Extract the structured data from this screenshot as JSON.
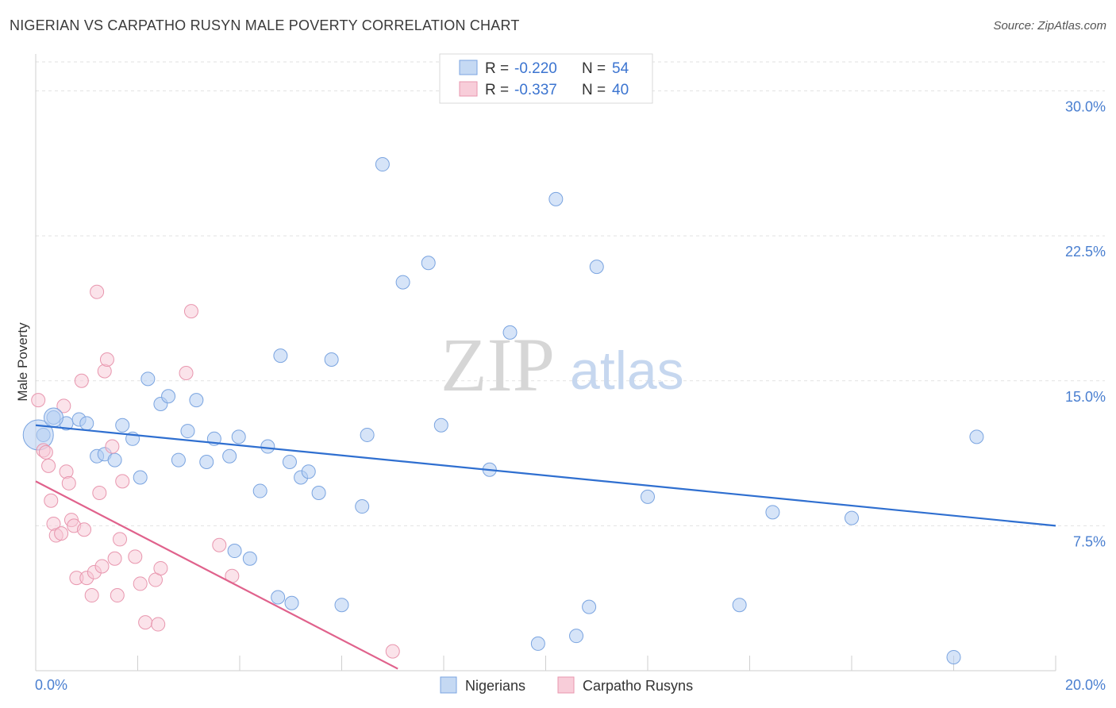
{
  "header": {
    "title": "NIGERIAN VS CARPATHO RUSYN MALE POVERTY CORRELATION CHART",
    "source": "Source: ZipAtlas.com"
  },
  "watermark": {
    "zip": "ZIP",
    "atlas": "atlas"
  },
  "legend": {
    "rows": [
      {
        "r_label": "R = ",
        "r_value": "-0.220",
        "n_label": "N = ",
        "n_value": "54",
        "color": "#5b8fd8"
      },
      {
        "r_label": "R = ",
        "r_value": "-0.337",
        "n_label": "N = ",
        "n_value": "40",
        "color": "#e07a9a"
      }
    ]
  },
  "bottom_legend": {
    "items": [
      {
        "label": "Nigerians",
        "color": "#5b8fd8"
      },
      {
        "label": "Carpatho Rusyns",
        "color": "#e07a9a"
      }
    ]
  },
  "chart_data": {
    "type": "scatter",
    "title": "NIGERIAN VS CARPATHO RUSYN MALE POVERTY CORRELATION CHART",
    "xlabel": "",
    "ylabel": "Male Poverty",
    "xlim": [
      0,
      20
    ],
    "ylim": [
      0,
      31.5
    ],
    "x_tick_labels": [
      "0.0%",
      "20.0%"
    ],
    "y_ticks": [
      7.5,
      15.0,
      22.5,
      30.0
    ],
    "y_tick_labels": [
      "7.5%",
      "15.0%",
      "22.5%",
      "30.0%"
    ],
    "grid": "horizontal dashed",
    "legend_position": "top-center",
    "series": [
      {
        "name": "Nigerians",
        "color": "#5b8fd8",
        "trend": {
          "x": [
            0,
            20
          ],
          "y": [
            12.7,
            7.5
          ]
        },
        "points": [
          [
            0.15,
            12.2
          ],
          [
            0.35,
            13.1
          ],
          [
            0.6,
            12.8
          ],
          [
            0.85,
            13.0
          ],
          [
            1.0,
            12.8
          ],
          [
            1.2,
            11.1
          ],
          [
            1.35,
            11.2
          ],
          [
            1.55,
            10.9
          ],
          [
            1.7,
            12.7
          ],
          [
            1.9,
            12.0
          ],
          [
            2.05,
            10.0
          ],
          [
            2.2,
            15.1
          ],
          [
            2.45,
            13.8
          ],
          [
            2.6,
            14.2
          ],
          [
            2.8,
            10.9
          ],
          [
            2.98,
            12.4
          ],
          [
            3.15,
            14.0
          ],
          [
            3.35,
            10.8
          ],
          [
            3.5,
            12.0
          ],
          [
            3.8,
            11.1
          ],
          [
            3.9,
            6.2
          ],
          [
            3.98,
            12.1
          ],
          [
            4.2,
            5.8
          ],
          [
            4.4,
            9.3
          ],
          [
            4.55,
            11.6
          ],
          [
            4.75,
            3.8
          ],
          [
            4.8,
            16.3
          ],
          [
            4.98,
            10.8
          ],
          [
            5.02,
            3.5
          ],
          [
            5.2,
            10.0
          ],
          [
            5.35,
            10.3
          ],
          [
            5.55,
            9.2
          ],
          [
            5.8,
            16.1
          ],
          [
            6.0,
            3.4
          ],
          [
            6.4,
            8.5
          ],
          [
            6.5,
            12.2
          ],
          [
            6.8,
            26.2
          ],
          [
            7.2,
            20.1
          ],
          [
            7.7,
            21.1
          ],
          [
            7.95,
            12.7
          ],
          [
            8.9,
            10.4
          ],
          [
            9.3,
            17.5
          ],
          [
            9.85,
            1.4
          ],
          [
            10.2,
            24.4
          ],
          [
            10.6,
            1.8
          ],
          [
            10.85,
            3.3
          ],
          [
            11.0,
            20.9
          ],
          [
            12.0,
            9.0
          ],
          [
            13.8,
            3.4
          ],
          [
            14.45,
            8.2
          ],
          [
            16.0,
            7.9
          ],
          [
            18.0,
            0.7
          ],
          [
            18.45,
            12.1
          ],
          [
            0.05,
            12.2
          ]
        ]
      },
      {
        "name": "Carpatho Rusyns",
        "color": "#e07a9a",
        "trend": {
          "x": [
            0,
            7.1
          ],
          "y": [
            9.8,
            0.1
          ]
        },
        "points": [
          [
            0.05,
            14.0
          ],
          [
            0.15,
            11.4
          ],
          [
            0.2,
            11.3
          ],
          [
            0.25,
            10.6
          ],
          [
            0.3,
            8.8
          ],
          [
            0.35,
            7.6
          ],
          [
            0.4,
            7.0
          ],
          [
            0.5,
            7.1
          ],
          [
            0.55,
            13.7
          ],
          [
            0.6,
            10.3
          ],
          [
            0.65,
            9.7
          ],
          [
            0.7,
            7.8
          ],
          [
            0.75,
            7.5
          ],
          [
            0.8,
            4.8
          ],
          [
            0.9,
            15.0
          ],
          [
            0.95,
            7.3
          ],
          [
            1.0,
            4.8
          ],
          [
            1.1,
            3.9
          ],
          [
            1.15,
            5.1
          ],
          [
            1.2,
            19.6
          ],
          [
            1.25,
            9.2
          ],
          [
            1.3,
            5.4
          ],
          [
            1.35,
            15.5
          ],
          [
            1.4,
            16.1
          ],
          [
            1.5,
            11.6
          ],
          [
            1.55,
            5.8
          ],
          [
            1.6,
            3.9
          ],
          [
            1.65,
            6.8
          ],
          [
            1.7,
            9.8
          ],
          [
            1.95,
            5.9
          ],
          [
            2.05,
            4.5
          ],
          [
            2.15,
            2.5
          ],
          [
            2.35,
            4.7
          ],
          [
            2.4,
            2.4
          ],
          [
            2.45,
            5.3
          ],
          [
            2.95,
            15.4
          ],
          [
            3.05,
            18.6
          ],
          [
            3.6,
            6.5
          ],
          [
            3.85,
            4.9
          ],
          [
            7.0,
            1.0
          ]
        ]
      }
    ]
  }
}
